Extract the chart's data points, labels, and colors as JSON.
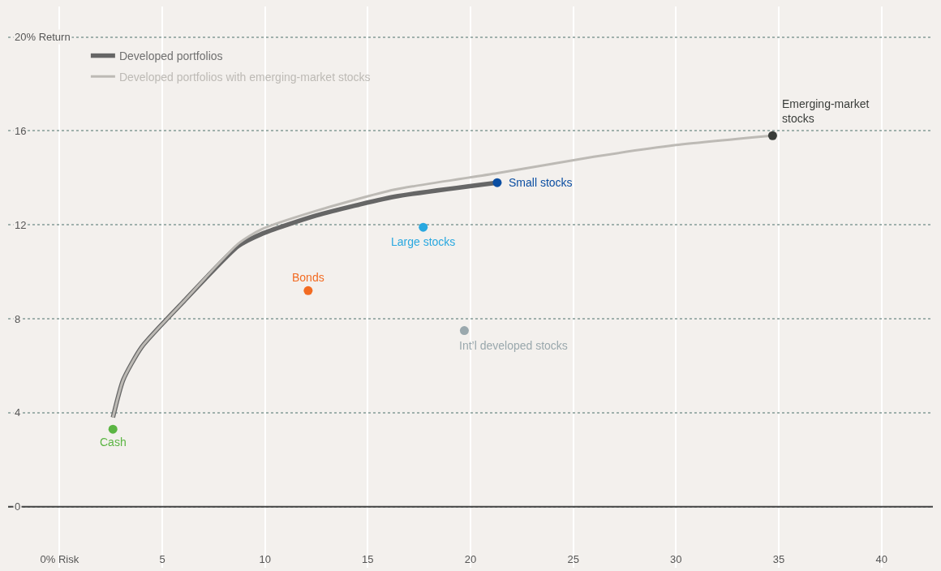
{
  "chart_data": {
    "type": "scatter",
    "series": [
      {
        "type": "line",
        "name": "Developed portfolios",
        "color": "#666666",
        "x": [
          2.6,
          3.1,
          4.0,
          6.0,
          8.7,
          9.8,
          12.5,
          16.3,
          21.3
        ],
        "values": [
          3.8,
          5.4,
          6.8,
          8.7,
          11.1,
          11.6,
          12.4,
          13.2,
          13.8
        ]
      },
      {
        "type": "line",
        "name": "Developed portfolios with emerging-market stocks",
        "color": "#bdbab5",
        "x": [
          2.6,
          3.1,
          4.0,
          6.0,
          8.7,
          9.8,
          12.5,
          16.3,
          21.3,
          26.0,
          30.0,
          34.7
        ],
        "values": [
          3.8,
          5.4,
          6.8,
          8.7,
          11.2,
          11.8,
          12.6,
          13.5,
          14.2,
          14.9,
          15.4,
          15.8
        ]
      },
      {
        "marker": "circle",
        "x": [
          2.6,
          12.1,
          17.7,
          19.7,
          21.3,
          34.7
        ],
        "values": [
          3.3,
          9.2,
          11.9,
          7.5,
          13.8,
          15.8
        ],
        "colors": [
          "#5bb543",
          "#f26b22",
          "#29a8e0",
          "#9aa8ad",
          "#0b4ea2",
          "#3a3d3a"
        ]
      }
    ],
    "annotations": [
      {
        "text": "Cash",
        "x": 2.6,
        "y": 3.3
      },
      {
        "text": "Bonds",
        "x": 12.1,
        "y": 9.2
      },
      {
        "text": "Large stocks",
        "x": 17.7,
        "y": 11.9
      },
      {
        "text": "Int’l developed stocks",
        "x": 19.7,
        "y": 7.5
      },
      {
        "text": "Small stocks",
        "x": 21.3,
        "y": 13.8
      },
      {
        "text": "Emerging-market\nstocks",
        "x": 34.7,
        "y": 15.8
      }
    ],
    "xlim": [
      -2.5,
      42.5
    ],
    "xticks": [
      {
        "value": 0,
        "label": "0% Risk"
      },
      5,
      10,
      15,
      20,
      25,
      30,
      35,
      40
    ],
    "ylim": [
      -2.6,
      21.3
    ],
    "yticks": [
      0,
      4,
      8,
      12,
      16,
      {
        "value": 20,
        "label": "20% Return"
      }
    ],
    "ref_lines": [
      {
        "axis": "y",
        "value": 0,
        "color": "#444444"
      }
    ],
    "grid": true,
    "legend": "top left"
  }
}
